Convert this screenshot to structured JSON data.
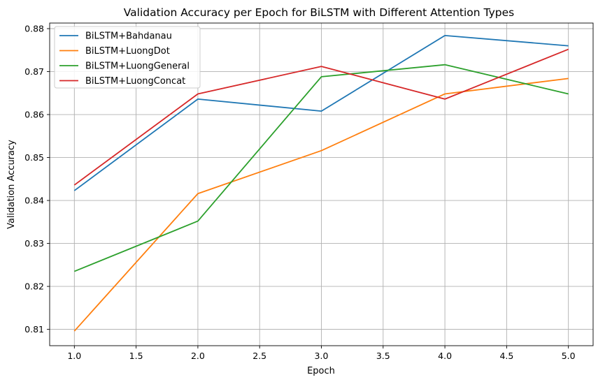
{
  "chart_data": {
    "type": "line",
    "title": "Validation Accuracy per Epoch for BiLSTM with Different Attention Types",
    "xlabel": "Epoch",
    "ylabel": "Validation Accuracy",
    "x": [
      1,
      2,
      3,
      4,
      5
    ],
    "xlim": [
      0.8,
      5.2
    ],
    "ylim": [
      0.8062,
      0.8813
    ],
    "xticks": [
      1.0,
      1.5,
      2.0,
      2.5,
      3.0,
      3.5,
      4.0,
      4.5,
      5.0
    ],
    "xtick_labels": [
      "1.0",
      "1.5",
      "2.0",
      "2.5",
      "3.0",
      "3.5",
      "4.0",
      "4.5",
      "5.0"
    ],
    "yticks": [
      0.81,
      0.82,
      0.83,
      0.84,
      0.85,
      0.86,
      0.87,
      0.88
    ],
    "ytick_labels": [
      "0.81",
      "0.82",
      "0.83",
      "0.84",
      "0.85",
      "0.86",
      "0.87",
      "0.88"
    ],
    "grid": true,
    "legend_position": "top-left",
    "series": [
      {
        "name": "BiLSTM+Bahdanau",
        "color": "#1f77b4",
        "values": [
          0.8423,
          0.8636,
          0.8608,
          0.8784,
          0.876
        ]
      },
      {
        "name": "BiLSTM+LuongDot",
        "color": "#ff7f0e",
        "values": [
          0.8096,
          0.8416,
          0.8516,
          0.8648,
          0.8684
        ]
      },
      {
        "name": "BiLSTM+LuongGeneral",
        "color": "#2ca02c",
        "values": [
          0.8235,
          0.8352,
          0.8688,
          0.8716,
          0.8648
        ]
      },
      {
        "name": "BiLSTM+LuongConcat",
        "color": "#d62728",
        "values": [
          0.8436,
          0.8648,
          0.8712,
          0.8636,
          0.8752
        ]
      }
    ]
  }
}
